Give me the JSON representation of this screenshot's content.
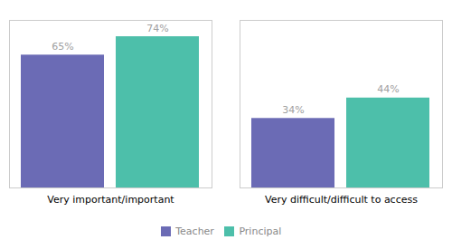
{
  "chart_data": {
    "type": "bar",
    "categories": [
      "Very important/important",
      "Very difficult/difficult to access"
    ],
    "series": [
      {
        "name": "Teacher",
        "color": "#6B6BB5",
        "values": [
          65,
          34
        ],
        "value_labels": [
          "65%",
          "34%"
        ]
      },
      {
        "name": "Principal",
        "color": "#4DBFAA",
        "values": [
          74,
          44
        ],
        "value_labels": [
          "74%",
          "44%"
        ]
      }
    ],
    "ylim": [
      0,
      82
    ],
    "yticks": [],
    "grid": false,
    "data_labels": true,
    "tick_labels": "x",
    "legend": "bottom"
  }
}
